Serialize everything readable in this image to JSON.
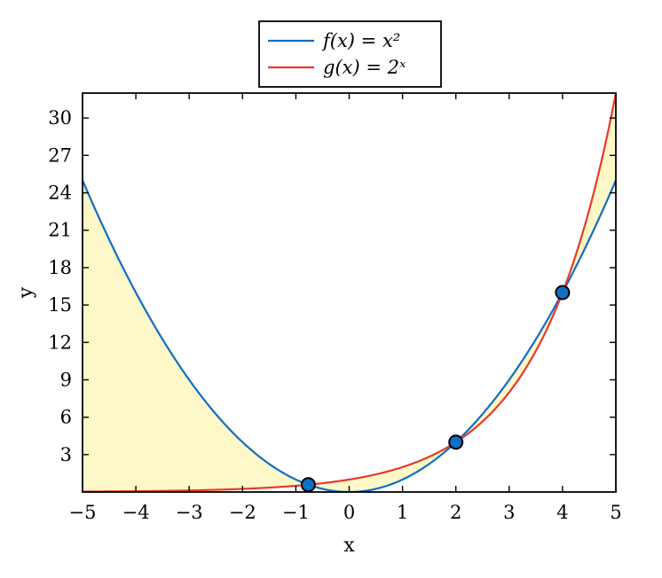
{
  "chart_data": {
    "type": "line",
    "xlabel": "x",
    "ylabel": "y",
    "xlim": [
      -5,
      5
    ],
    "ylim": [
      0,
      32
    ],
    "x_ticks": [
      -5,
      -4,
      -3,
      -2,
      -1,
      0,
      1,
      2,
      3,
      4,
      5
    ],
    "x_tick_labels": [
      "−5",
      "−4",
      "−3",
      "−2",
      "−1",
      "0",
      "1",
      "2",
      "3",
      "4",
      "5"
    ],
    "y_ticks": [
      3,
      6,
      9,
      12,
      15,
      18,
      21,
      24,
      27,
      30
    ],
    "y_tick_labels": [
      "3",
      "6",
      "9",
      "12",
      "15",
      "18",
      "21",
      "24",
      "27",
      "30"
    ],
    "grid": false,
    "legend_position": "top-center-outside",
    "series": [
      {
        "name": "f(x) = x²",
        "formula": "x^2",
        "color": "#0e6fc6"
      },
      {
        "name": "g(x) = 2ˣ",
        "formula": "2^x",
        "color": "#e8392b"
      }
    ],
    "intersections": [
      {
        "x": -0.767,
        "y": 0.588
      },
      {
        "x": 2,
        "y": 4
      },
      {
        "x": 4,
        "y": 16
      }
    ],
    "shaded_region": {
      "between": [
        "f(x) = x²",
        "g(x) = 2ˣ"
      ],
      "color": "#fef7c7"
    },
    "marker_color": "#0e6fc6"
  }
}
